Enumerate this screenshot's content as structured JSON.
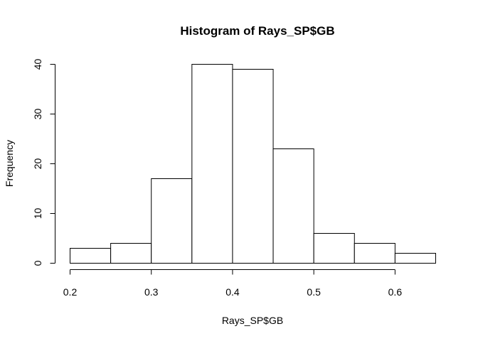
{
  "chart_data": {
    "type": "bar",
    "title": "Histogram of Rays_SP$GB",
    "xlabel": "Rays_SP$GB",
    "ylabel": "Frequency",
    "bins": [
      {
        "start": 0.2,
        "end": 0.25,
        "count": 3
      },
      {
        "start": 0.25,
        "end": 0.3,
        "count": 4
      },
      {
        "start": 0.3,
        "end": 0.35,
        "count": 17
      },
      {
        "start": 0.35,
        "end": 0.4,
        "count": 40
      },
      {
        "start": 0.4,
        "end": 0.45,
        "count": 39
      },
      {
        "start": 0.45,
        "end": 0.5,
        "count": 23
      },
      {
        "start": 0.5,
        "end": 0.55,
        "count": 6
      },
      {
        "start": 0.55,
        "end": 0.6,
        "count": 4
      },
      {
        "start": 0.6,
        "end": 0.65,
        "count": 2
      }
    ],
    "xlim": [
      0.2,
      0.65
    ],
    "ylim": [
      0,
      40
    ],
    "xticks": [
      0.2,
      0.3,
      0.4,
      0.5,
      0.6
    ],
    "xtick_labels": [
      "0.2",
      "0.3",
      "0.4",
      "0.5",
      "0.6"
    ],
    "yticks": [
      0,
      10,
      20,
      30,
      40
    ],
    "ytick_labels": [
      "0",
      "10",
      "20",
      "30",
      "40"
    ],
    "grid": false
  }
}
